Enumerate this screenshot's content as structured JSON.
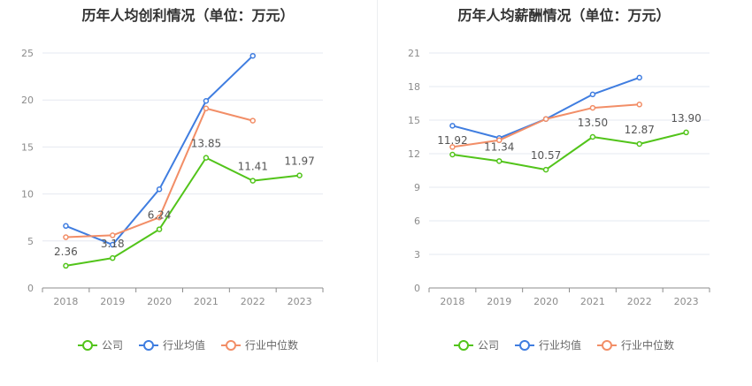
{
  "legend": [
    "公司",
    "行业均值",
    "行业中位数"
  ],
  "colors": [
    "#52c41a",
    "#3f7de0",
    "#f28e67"
  ],
  "charts": [
    {
      "title": "历年人均创利情况（单位：万元）",
      "chart_data": {
        "type": "line",
        "x": [
          "2018",
          "2019",
          "2020",
          "2021",
          "2022",
          "2023"
        ],
        "ylim": [
          0,
          25
        ],
        "yticks": [
          0,
          5,
          10,
          15,
          20,
          25
        ],
        "series": [
          {
            "name": "公司",
            "values": [
              2.36,
              3.18,
              6.24,
              13.85,
              11.41,
              11.97
            ],
            "labels": [
              "2.36",
              "3.18",
              "6.24",
              "13.85",
              "11.41",
              "11.97"
            ]
          },
          {
            "name": "行业均值",
            "values": [
              6.6,
              4.6,
              10.5,
              19.9,
              24.7,
              null
            ]
          },
          {
            "name": "行业中位数",
            "values": [
              5.4,
              5.6,
              7.5,
              19.1,
              17.8,
              null
            ]
          }
        ]
      }
    },
    {
      "title": "历年人均薪酬情况（单位：万元）",
      "chart_data": {
        "type": "line",
        "x": [
          "2018",
          "2019",
          "2020",
          "2021",
          "2022",
          "2023"
        ],
        "ylim": [
          0,
          21
        ],
        "yticks": [
          0,
          3,
          6,
          9,
          12,
          15,
          18,
          21
        ],
        "series": [
          {
            "name": "公司",
            "values": [
              11.92,
              11.34,
              10.57,
              13.5,
              12.87,
              13.9
            ],
            "labels": [
              "11.92",
              "11.34",
              "10.57",
              "13.50",
              "12.87",
              "13.90"
            ]
          },
          {
            "name": "行业均值",
            "values": [
              14.5,
              13.4,
              15.1,
              17.3,
              18.8,
              null
            ]
          },
          {
            "name": "行业中位数",
            "values": [
              12.6,
              13.2,
              15.1,
              16.1,
              16.4,
              null
            ]
          }
        ]
      }
    }
  ]
}
